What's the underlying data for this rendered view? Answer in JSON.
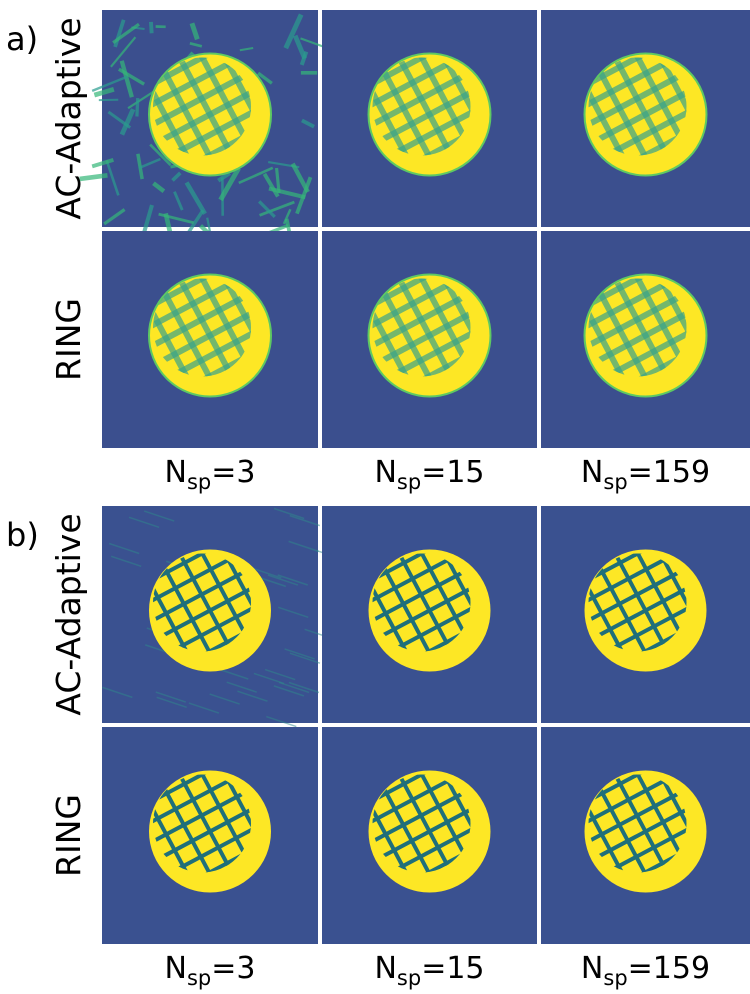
{
  "panels": [
    {
      "letter": "a)",
      "rows": [
        "AC-Adaptive",
        "RING"
      ],
      "columns": [
        {
          "main": "N",
          "sub": "sp",
          "rest": "=3"
        },
        {
          "main": "N",
          "sub": "sp",
          "rest": "=15"
        },
        {
          "main": "N",
          "sub": "sp",
          "rest": "=159"
        }
      ]
    },
    {
      "letter": "b)",
      "rows": [
        "AC-Adaptive",
        "RING"
      ],
      "columns": [
        {
          "main": "N",
          "sub": "sp",
          "rest": "=3"
        },
        {
          "main": "N",
          "sub": "sp",
          "rest": "=15"
        },
        {
          "main": "N",
          "sub": "sp",
          "rest": "=159"
        }
      ]
    }
  ]
}
